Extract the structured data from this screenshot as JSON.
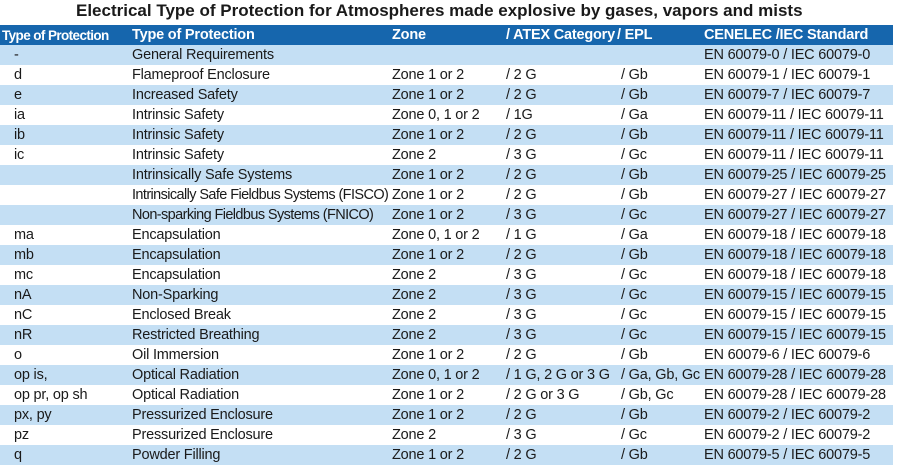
{
  "title": "Electrical Type of Protection for Atmospheres made explosive by gases, vapors and mists",
  "headers": {
    "code": "Type of Protection",
    "name": "Type of Protection",
    "zone": "Zone",
    "atex": "/ ATEX Category",
    "epl": "/ EPL",
    "standard": "CENELEC /IEC Standard"
  },
  "rows": [
    {
      "code": "-",
      "name": "General Requirements",
      "zone": "",
      "atex": "",
      "epl": "",
      "standard": "EN 60079-0  /  IEC 60079-0"
    },
    {
      "code": "d",
      "name": "Flameproof Enclosure",
      "zone": "Zone 1 or 2",
      "atex": "/ 2 G",
      "epl": "/ Gb",
      "standard": "EN 60079-1  /  IEC 60079-1"
    },
    {
      "code": "e",
      "name": "Increased Safety",
      "zone": "Zone 1 or 2",
      "atex": "/ 2 G",
      "epl": "/ Gb",
      "standard": "EN 60079-7  /  IEC 60079-7"
    },
    {
      "code": "ia",
      "name": "Intrinsic Safety",
      "zone": "Zone 0, 1 or 2",
      "atex": "/ 1G",
      "epl": "/ Ga",
      "standard": "EN 60079-11 / IEC 60079-11"
    },
    {
      "code": "ib",
      "name": "Intrinsic Safety",
      "zone": "Zone 1 or 2",
      "atex": "/ 2 G",
      "epl": "/ Gb",
      "standard": "EN 60079-11 / IEC 60079-11"
    },
    {
      "code": "ic",
      "name": "Intrinsic Safety",
      "zone": "Zone 2",
      "atex": "/ 3 G",
      "epl": "/ Gc",
      "standard": "EN 60079-11 / IEC 60079-11"
    },
    {
      "code": "",
      "name": "Intrinsically Safe Systems",
      "zone": "Zone 1 or 2",
      "atex": "/ 2 G",
      "epl": "/ Gb",
      "standard": "EN 60079-25 / IEC 60079-25"
    },
    {
      "code": "",
      "name": "Intrinsically Safe Fieldbus Systems (FISCO)",
      "zone": "Zone 1 or 2",
      "atex": "/ 2 G",
      "epl": "/ Gb",
      "standard": "EN 60079-27 / IEC 60079-27"
    },
    {
      "code": "",
      "name": "Non-sparking Fieldbus Systems (FNICO)",
      "zone": "Zone 1 or 2",
      "atex": "/ 3 G",
      "epl": "/ Gc",
      "standard": "EN 60079-27 / IEC 60079-27"
    },
    {
      "code": "ma",
      "name": "Encapsulation",
      "zone": "Zone 0, 1 or 2",
      "atex": "/ 1 G",
      "epl": "/ Ga",
      "standard": "EN 60079-18 / IEC 60079-18"
    },
    {
      "code": "mb",
      "name": "Encapsulation",
      "zone": "Zone 1 or 2",
      "atex": "/ 2 G",
      "epl": "/ Gb",
      "standard": "EN 60079-18 / IEC 60079-18"
    },
    {
      "code": "mc",
      "name": "Encapsulation",
      "zone": "Zone 2",
      "atex": "/ 3 G",
      "epl": "/ Gc",
      "standard": "EN 60079-18 / IEC 60079-18"
    },
    {
      "code": "nA",
      "name": "Non-Sparking",
      "zone": "Zone 2",
      "atex": "/ 3 G",
      "epl": "/ Gc",
      "standard": "EN 60079-15 / IEC 60079-15"
    },
    {
      "code": "nC",
      "name": "Enclosed Break",
      "zone": "Zone 2",
      "atex": "/ 3 G",
      "epl": "/ Gc",
      "standard": "EN 60079-15 / IEC 60079-15"
    },
    {
      "code": "nR",
      "name": "Restricted Breathing",
      "zone": "Zone 2",
      "atex": "/ 3 G",
      "epl": "/ Gc",
      "standard": "EN 60079-15 / IEC 60079-15"
    },
    {
      "code": "o",
      "name": "Oil Immersion",
      "zone": "Zone 1 or 2",
      "atex": "/ 2 G",
      "epl": "/ Gb",
      "standard": "EN 60079-6  /  IEC 60079-6"
    },
    {
      "code": "op is,",
      "name": "Optical Radiation",
      "zone": "Zone 0, 1 or 2",
      "atex": "/ 1 G, 2 G or 3 G",
      "epl": "/ Ga, Gb, Gc",
      "standard": "EN 60079-28 / IEC 60079-28"
    },
    {
      "code": "op pr, op sh",
      "name": "Optical Radiation",
      "zone": "Zone 1 or 2",
      "atex": "/ 2 G or 3 G",
      "epl": "/ Gb, Gc",
      "standard": "EN 60079-28 / IEC 60079-28"
    },
    {
      "code": "px, py",
      "name": "Pressurized Enclosure",
      "zone": "Zone 1 or 2",
      "atex": "/ 2 G",
      "epl": "/ Gb",
      "standard": "EN 60079-2  /  IEC 60079-2"
    },
    {
      "code": "pz",
      "name": "Pressurized Enclosure",
      "zone": "Zone 2",
      "atex": "/ 3 G",
      "epl": "/ Gc",
      "standard": "EN 60079-2  /  IEC 60079-2"
    },
    {
      "code": "q",
      "name": "Powder Filling",
      "zone": "Zone 1 or 2",
      "atex": "/ 2 G",
      "epl": "/ Gb",
      "standard": "EN 60079-5  /  IEC 60079-5"
    }
  ],
  "colors": {
    "header_bg": "#1666ad",
    "header_text": "#ffffff",
    "stripe": "#c4dff4",
    "text": "#1a1a1a"
  }
}
